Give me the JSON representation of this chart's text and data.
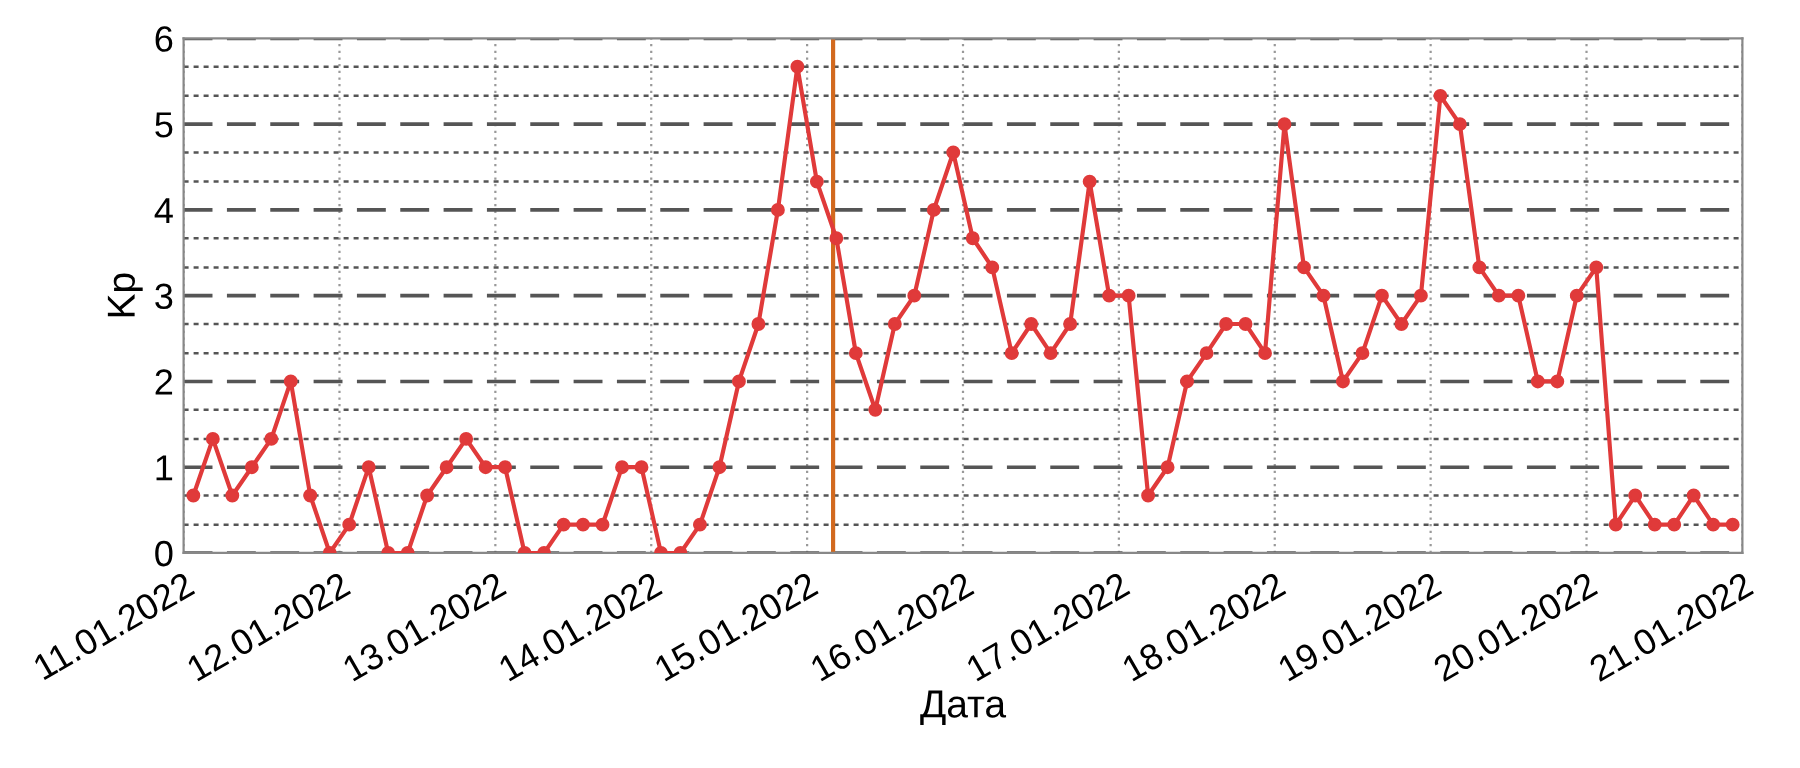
{
  "chart_data": {
    "type": "line",
    "xlabel": "Дата",
    "ylabel": "Kp",
    "x": [
      "2022-01-11T01:30",
      "2022-01-11T04:30",
      "2022-01-11T07:30",
      "2022-01-11T10:30",
      "2022-01-11T13:30",
      "2022-01-11T16:30",
      "2022-01-11T19:30",
      "2022-01-11T22:30",
      "2022-01-12T01:30",
      "2022-01-12T04:30",
      "2022-01-12T07:30",
      "2022-01-12T10:30",
      "2022-01-12T13:30",
      "2022-01-12T16:30",
      "2022-01-12T19:30",
      "2022-01-12T22:30",
      "2022-01-13T01:30",
      "2022-01-13T04:30",
      "2022-01-13T07:30",
      "2022-01-13T10:30",
      "2022-01-13T13:30",
      "2022-01-13T16:30",
      "2022-01-13T19:30",
      "2022-01-13T22:30",
      "2022-01-14T01:30",
      "2022-01-14T04:30",
      "2022-01-14T07:30",
      "2022-01-14T10:30",
      "2022-01-14T13:30",
      "2022-01-14T16:30",
      "2022-01-14T19:30",
      "2022-01-14T22:30",
      "2022-01-15T01:30",
      "2022-01-15T04:30",
      "2022-01-15T07:30",
      "2022-01-15T10:30",
      "2022-01-15T13:30",
      "2022-01-15T16:30",
      "2022-01-15T19:30",
      "2022-01-15T22:30",
      "2022-01-16T01:30",
      "2022-01-16T04:30",
      "2022-01-16T07:30",
      "2022-01-16T10:30",
      "2022-01-16T13:30",
      "2022-01-16T16:30",
      "2022-01-16T19:30",
      "2022-01-16T22:30",
      "2022-01-17T01:30",
      "2022-01-17T04:30",
      "2022-01-17T07:30",
      "2022-01-17T10:30",
      "2022-01-17T13:30",
      "2022-01-17T16:30",
      "2022-01-17T19:30",
      "2022-01-17T22:30",
      "2022-01-18T01:30",
      "2022-01-18T04:30",
      "2022-01-18T07:30",
      "2022-01-18T10:30",
      "2022-01-18T13:30",
      "2022-01-18T16:30",
      "2022-01-18T19:30",
      "2022-01-18T22:30",
      "2022-01-19T01:30",
      "2022-01-19T04:30",
      "2022-01-19T07:30",
      "2022-01-19T10:30",
      "2022-01-19T13:30",
      "2022-01-19T16:30",
      "2022-01-19T19:30",
      "2022-01-19T22:30",
      "2022-01-20T01:30",
      "2022-01-20T04:30",
      "2022-01-20T07:30",
      "2022-01-20T10:30",
      "2022-01-20T13:30",
      "2022-01-20T16:30",
      "2022-01-20T19:30",
      "2022-01-20T22:30"
    ],
    "series": [
      {
        "color": "#e03a3a",
        "values": [
          0.67,
          1.33,
          0.67,
          1,
          1.33,
          2,
          0.67,
          0,
          0.33,
          1,
          0,
          0,
          0.67,
          1,
          1.33,
          1,
          1,
          0,
          0,
          0.33,
          0.33,
          0.33,
          1,
          1,
          0,
          0,
          0.33,
          1,
          2,
          2.67,
          4,
          5.67,
          4.33,
          3.67,
          2.33,
          1.67,
          2.67,
          3,
          4,
          4.67,
          3.67,
          3.33,
          2.33,
          2.67,
          2.33,
          2.67,
          4.33,
          3,
          3,
          0.67,
          1,
          2,
          2.33,
          2.67,
          2.67,
          2.33,
          5,
          3.33,
          3,
          2,
          2.33,
          3,
          2.67,
          3,
          5.33,
          5,
          3.33,
          3,
          3,
          2,
          2,
          3,
          3.33,
          0.33,
          0.67,
          0.33,
          0.33,
          0.67,
          0.33,
          0.33
        ]
      }
    ],
    "xlim": [
      "2022-01-11",
      "2022-01-21"
    ],
    "xticks": [
      {
        "value": "2022-01-11",
        "label": "11.01.2022"
      },
      {
        "value": "2022-01-12",
        "label": "12.01.2022"
      },
      {
        "value": "2022-01-13",
        "label": "13.01.2022"
      },
      {
        "value": "2022-01-14",
        "label": "14.01.2022"
      },
      {
        "value": "2022-01-15",
        "label": "15.01.2022"
      },
      {
        "value": "2022-01-16",
        "label": "16.01.2022"
      },
      {
        "value": "2022-01-17",
        "label": "17.01.2022"
      },
      {
        "value": "2022-01-18",
        "label": "18.01.2022"
      },
      {
        "value": "2022-01-19",
        "label": "19.01.2022"
      },
      {
        "value": "2022-01-20",
        "label": "20.01.2022"
      },
      {
        "value": "2022-01-21",
        "label": "21.01.2022"
      }
    ],
    "ylim": [
      0,
      6
    ],
    "yticks": [
      0,
      {
        "value": 0.33,
        "label": null
      },
      {
        "value": 0.67,
        "label": null
      },
      1,
      {
        "value": 1.33,
        "label": null
      },
      {
        "value": 1.67,
        "label": null
      },
      2,
      {
        "value": 2.33,
        "label": null
      },
      {
        "value": 2.67,
        "label": null
      },
      3,
      {
        "value": 3.33,
        "label": null
      },
      {
        "value": 3.67,
        "label": null
      },
      4,
      {
        "value": 4.33,
        "label": null
      },
      {
        "value": 4.67,
        "label": null
      },
      5,
      {
        "value": 5.33,
        "label": null
      },
      {
        "value": 5.67,
        "label": null
      },
      6
    ],
    "ref_lines": [
      {
        "axis": "x",
        "value": "2022-01-15T04:00",
        "color": "#d2691e"
      }
    ],
    "grid": true,
    "marker": "circle",
    "line_style": "solid"
  }
}
